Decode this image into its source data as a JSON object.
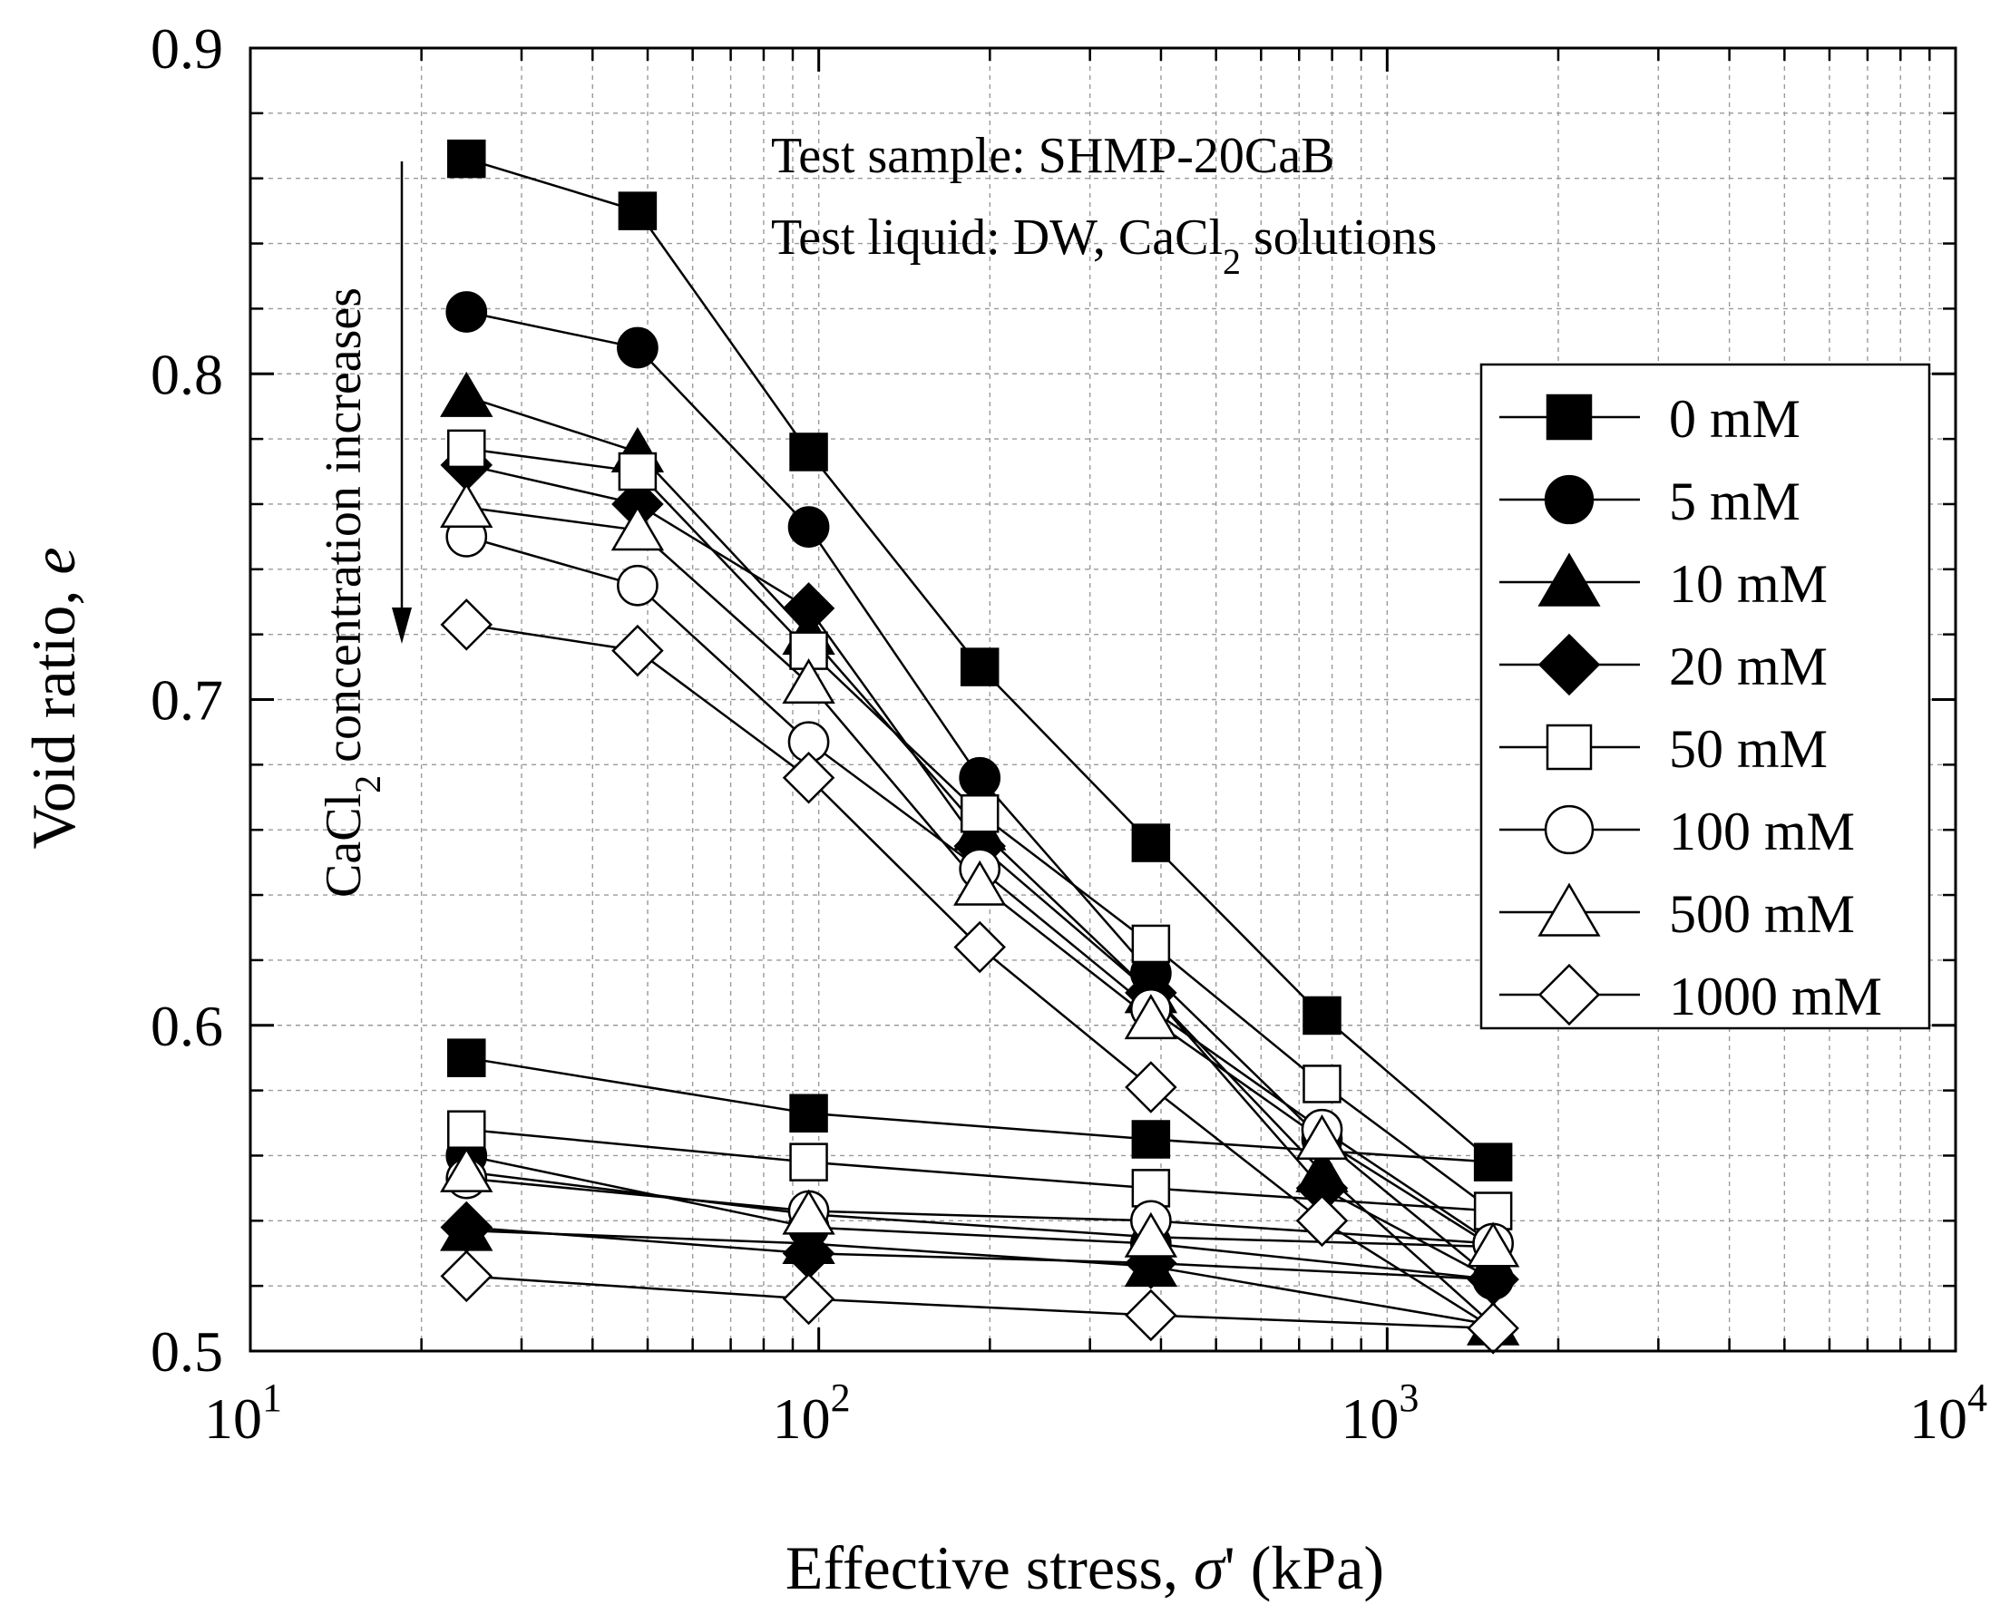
{
  "chart_data": {
    "type": "line",
    "x_scale": "log",
    "xlim": [
      10,
      10000
    ],
    "ylim": [
      0.5,
      0.9
    ],
    "x_ticks": [
      {
        "value": 10,
        "base": "10",
        "exp": "1"
      },
      {
        "value": 100,
        "base": "10",
        "exp": "2"
      },
      {
        "value": 1000,
        "base": "10",
        "exp": "3"
      },
      {
        "value": 10000,
        "base": "10",
        "exp": "4"
      }
    ],
    "y_ticks": [
      {
        "value": 0.5,
        "label": "0.5"
      },
      {
        "value": 0.6,
        "label": "0.6"
      },
      {
        "value": 0.7,
        "label": "0.7"
      },
      {
        "value": 0.8,
        "label": "0.8"
      },
      {
        "value": 0.9,
        "label": "0.9"
      }
    ],
    "x_minor_ticks": [
      20,
      30,
      40,
      50,
      60,
      70,
      80,
      90,
      200,
      300,
      400,
      500,
      600,
      700,
      800,
      900,
      2000,
      3000,
      4000,
      5000,
      6000,
      7000,
      8000,
      9000
    ],
    "y_minor_ticks": [
      0.52,
      0.54,
      0.56,
      0.58,
      0.62,
      0.64,
      0.66,
      0.68,
      0.72,
      0.74,
      0.76,
      0.78,
      0.82,
      0.84,
      0.86,
      0.88
    ],
    "grid": true,
    "xlabel": {
      "prefix": "Effective stress, ",
      "symbol": "σ",
      "suffix": "' (kPa)"
    },
    "ylabel": {
      "prefix": "Void ratio, ",
      "symbol": "e"
    },
    "annotations": {
      "sample": "Test sample: SHMP-20CaB",
      "liquid_prefix": "Test liquid: DW, CaCl",
      "liquid_sub": "2",
      "liquid_suffix": " solutions",
      "arrow_prefix": "CaCl",
      "arrow_sub": "2",
      "arrow_suffix": " concentration increases"
    },
    "legend_position": "right",
    "loading_x": [
      24,
      48,
      96,
      192,
      384,
      768,
      1536
    ],
    "unloading_x": [
      1536,
      384,
      96,
      24
    ],
    "series": [
      {
        "name": "0 mM",
        "marker": "square",
        "fill": "filled",
        "loading": [
          0.866,
          0.85,
          0.776,
          0.71,
          0.656,
          0.603,
          0.558
        ],
        "unloading": [
          0.558,
          0.565,
          0.573,
          0.59
        ]
      },
      {
        "name": "5 mM",
        "marker": "circle",
        "fill": "filled",
        "loading": [
          0.819,
          0.808,
          0.753,
          0.676,
          0.616,
          0.565,
          0.522
        ],
        "unloading": [
          0.522,
          0.533,
          0.538,
          0.56
        ]
      },
      {
        "name": "10 mM",
        "marker": "triangle",
        "fill": "filled",
        "loading": [
          0.793,
          0.776,
          0.72,
          0.66,
          0.61,
          0.555,
          0.508
        ],
        "unloading": [
          0.508,
          0.526,
          0.533,
          0.537
        ]
      },
      {
        "name": "20 mM",
        "marker": "diamond",
        "fill": "filled",
        "loading": [
          0.772,
          0.76,
          0.728,
          0.655,
          0.61,
          0.55,
          0.522
        ],
        "unloading": [
          0.522,
          0.527,
          0.53,
          0.538
        ]
      },
      {
        "name": "50 mM",
        "marker": "square",
        "fill": "open",
        "loading": [
          0.777,
          0.77,
          0.715,
          0.665,
          0.625,
          0.582,
          0.543
        ],
        "unloading": [
          0.543,
          0.55,
          0.558,
          0.568
        ]
      },
      {
        "name": "100 mM",
        "marker": "circle",
        "fill": "open",
        "loading": [
          0.75,
          0.735,
          0.687,
          0.648,
          0.605,
          0.568,
          0.533
        ],
        "unloading": [
          0.533,
          0.54,
          0.543,
          0.553
        ]
      },
      {
        "name": "500 mM",
        "marker": "triangle",
        "fill": "open",
        "loading": [
          0.759,
          0.752,
          0.705,
          0.643,
          0.602,
          0.565,
          0.532
        ],
        "unloading": [
          0.532,
          0.535,
          0.542,
          0.555
        ]
      },
      {
        "name": "1000 mM",
        "marker": "diamond",
        "fill": "open",
        "loading": [
          0.723,
          0.715,
          0.676,
          0.624,
          0.581,
          0.54,
          0.507
        ],
        "unloading": [
          0.507,
          0.511,
          0.516,
          0.523
        ]
      }
    ]
  }
}
